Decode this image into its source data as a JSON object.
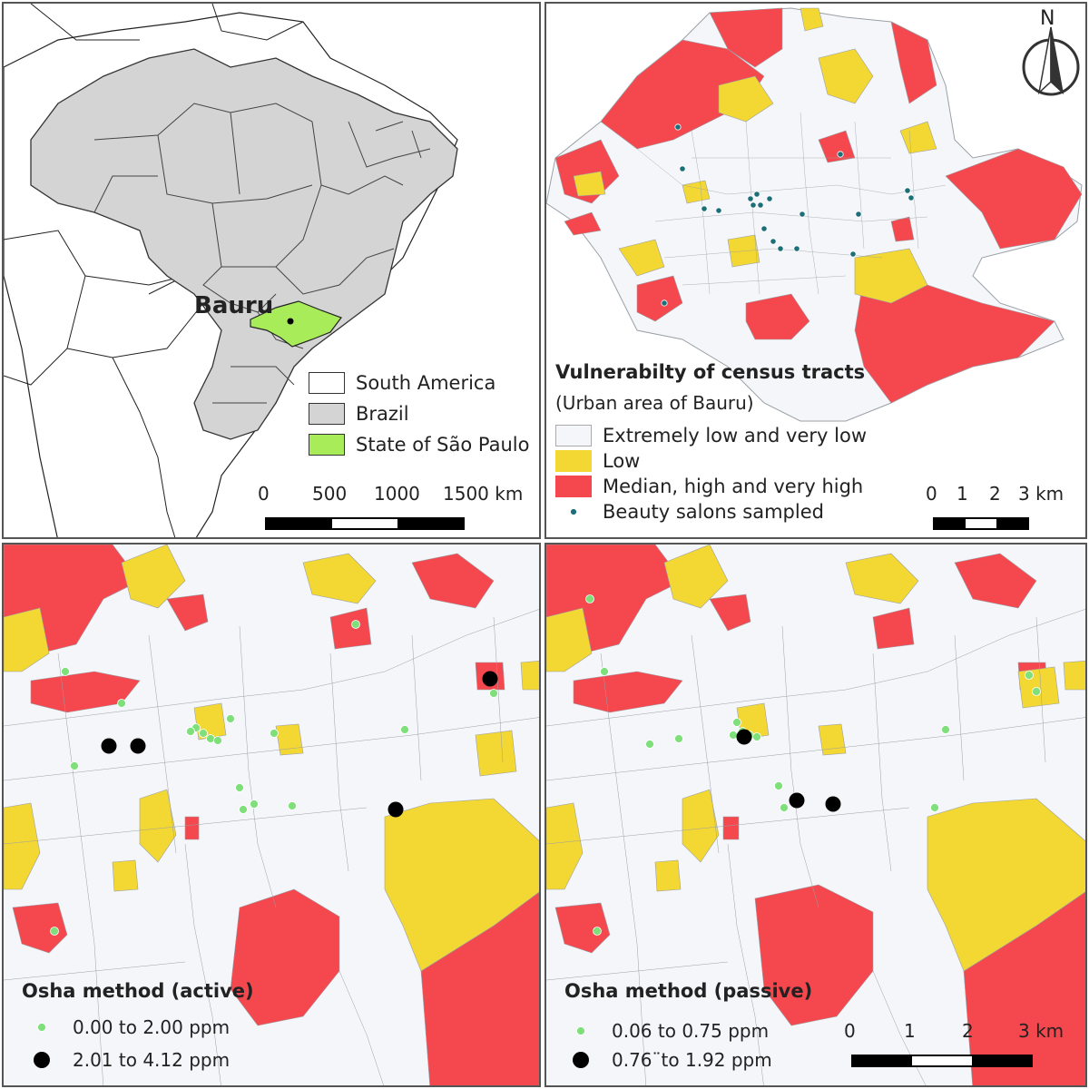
{
  "colors": {
    "extremely_low": "#f5f6fa",
    "low": "#f3d733",
    "median_high": "#f4484e",
    "brazil": "#d4d4d4",
    "sao_paulo": "#a8ec5a",
    "salon_dot": "#1c6f78",
    "small_dot": "#7fe07b",
    "big_dot": "#000000",
    "tract_border": "#9aa0a6"
  },
  "panel_overview": {
    "city_label": "Bauru",
    "legend": [
      {
        "label": "South America",
        "swatch": "south_america"
      },
      {
        "label": "Brazil",
        "swatch": "brazil"
      },
      {
        "label": "State of São Paulo",
        "swatch": "sao_paulo"
      }
    ],
    "scale": {
      "ticks": [
        "0",
        "500",
        "1000",
        "1500 km"
      ]
    }
  },
  "panel_vulnerability": {
    "north_label": "N",
    "title": "Vulnerabilty of census tracts",
    "subtitle": "(Urban area of Bauru)",
    "legend": [
      {
        "label": "Extremely low and very low",
        "swatch": "extremely_low"
      },
      {
        "label": "Low",
        "swatch": "low"
      },
      {
        "label": "Median, high and very high",
        "swatch": "median_high"
      },
      {
        "label": "Beauty salons sampled",
        "swatch": "salon_dot"
      }
    ],
    "scale": {
      "ticks": [
        "0",
        "1",
        "2",
        "3 km"
      ]
    }
  },
  "panel_active": {
    "title": "Osha method (active)",
    "legend": [
      {
        "label": "0.00 to 2.00 ppm",
        "marker": "small"
      },
      {
        "label": "2.01 to 4.12 ppm",
        "marker": "big"
      }
    ]
  },
  "panel_passive": {
    "title": "Osha method (passive)",
    "legend": [
      {
        "label": "0.06 to 0.75 ppm",
        "marker": "small"
      },
      {
        "label": "0.76¨to 1.92 ppm",
        "marker": "big"
      }
    ],
    "scale": {
      "ticks": [
        "0",
        "1",
        "2",
        "3 km"
      ]
    }
  }
}
